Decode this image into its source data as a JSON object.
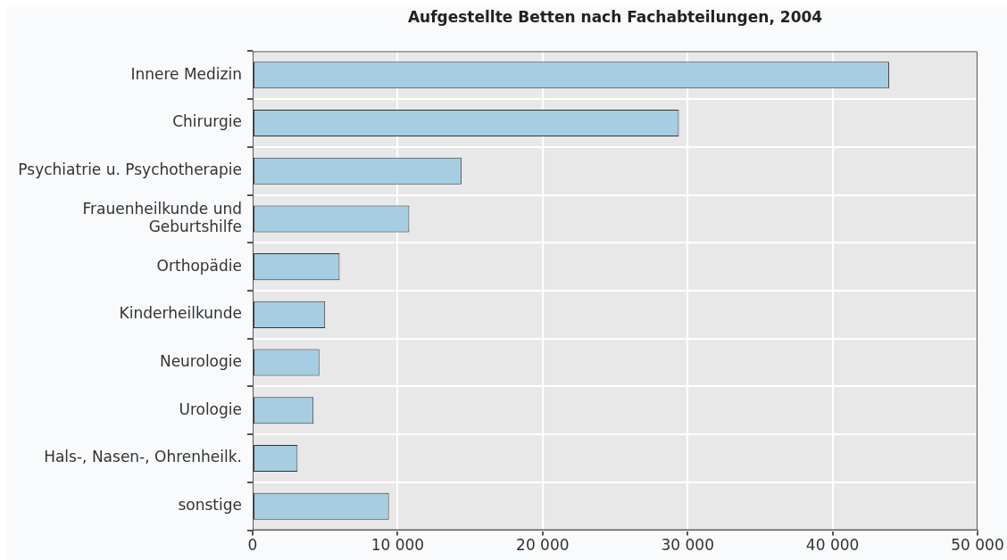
{
  "chart_data": {
    "type": "bar",
    "orientation": "horizontal",
    "title": "Aufgestellte Betten nach Fachabteilungen, 2004",
    "categories": [
      "Innere Medizin",
      "Chirurgie",
      "Psychiatrie u. Psychotherapie",
      "Frauenheilkunde und Geburtshilfe",
      "Orthopädie",
      "Kinderheilkunde",
      "Neurologie",
      "Urologie",
      "Hals-, Nasen-, Ohrenheilk.",
      "sonstige"
    ],
    "values": [
      43900,
      29400,
      14400,
      10800,
      6000,
      5000,
      4600,
      4200,
      3100,
      9400
    ],
    "color": "#a6cde1",
    "xlim": [
      0,
      50000
    ],
    "xticks": [
      0,
      {
        "value": 10000,
        "label": "10 000"
      },
      {
        "value": 20000,
        "label": "20 000"
      },
      {
        "value": 30000,
        "label": "30 000"
      },
      {
        "value": 40000,
        "label": "40 000"
      },
      {
        "value": 50000,
        "label": "50 000"
      }
    ],
    "grid": true
  }
}
